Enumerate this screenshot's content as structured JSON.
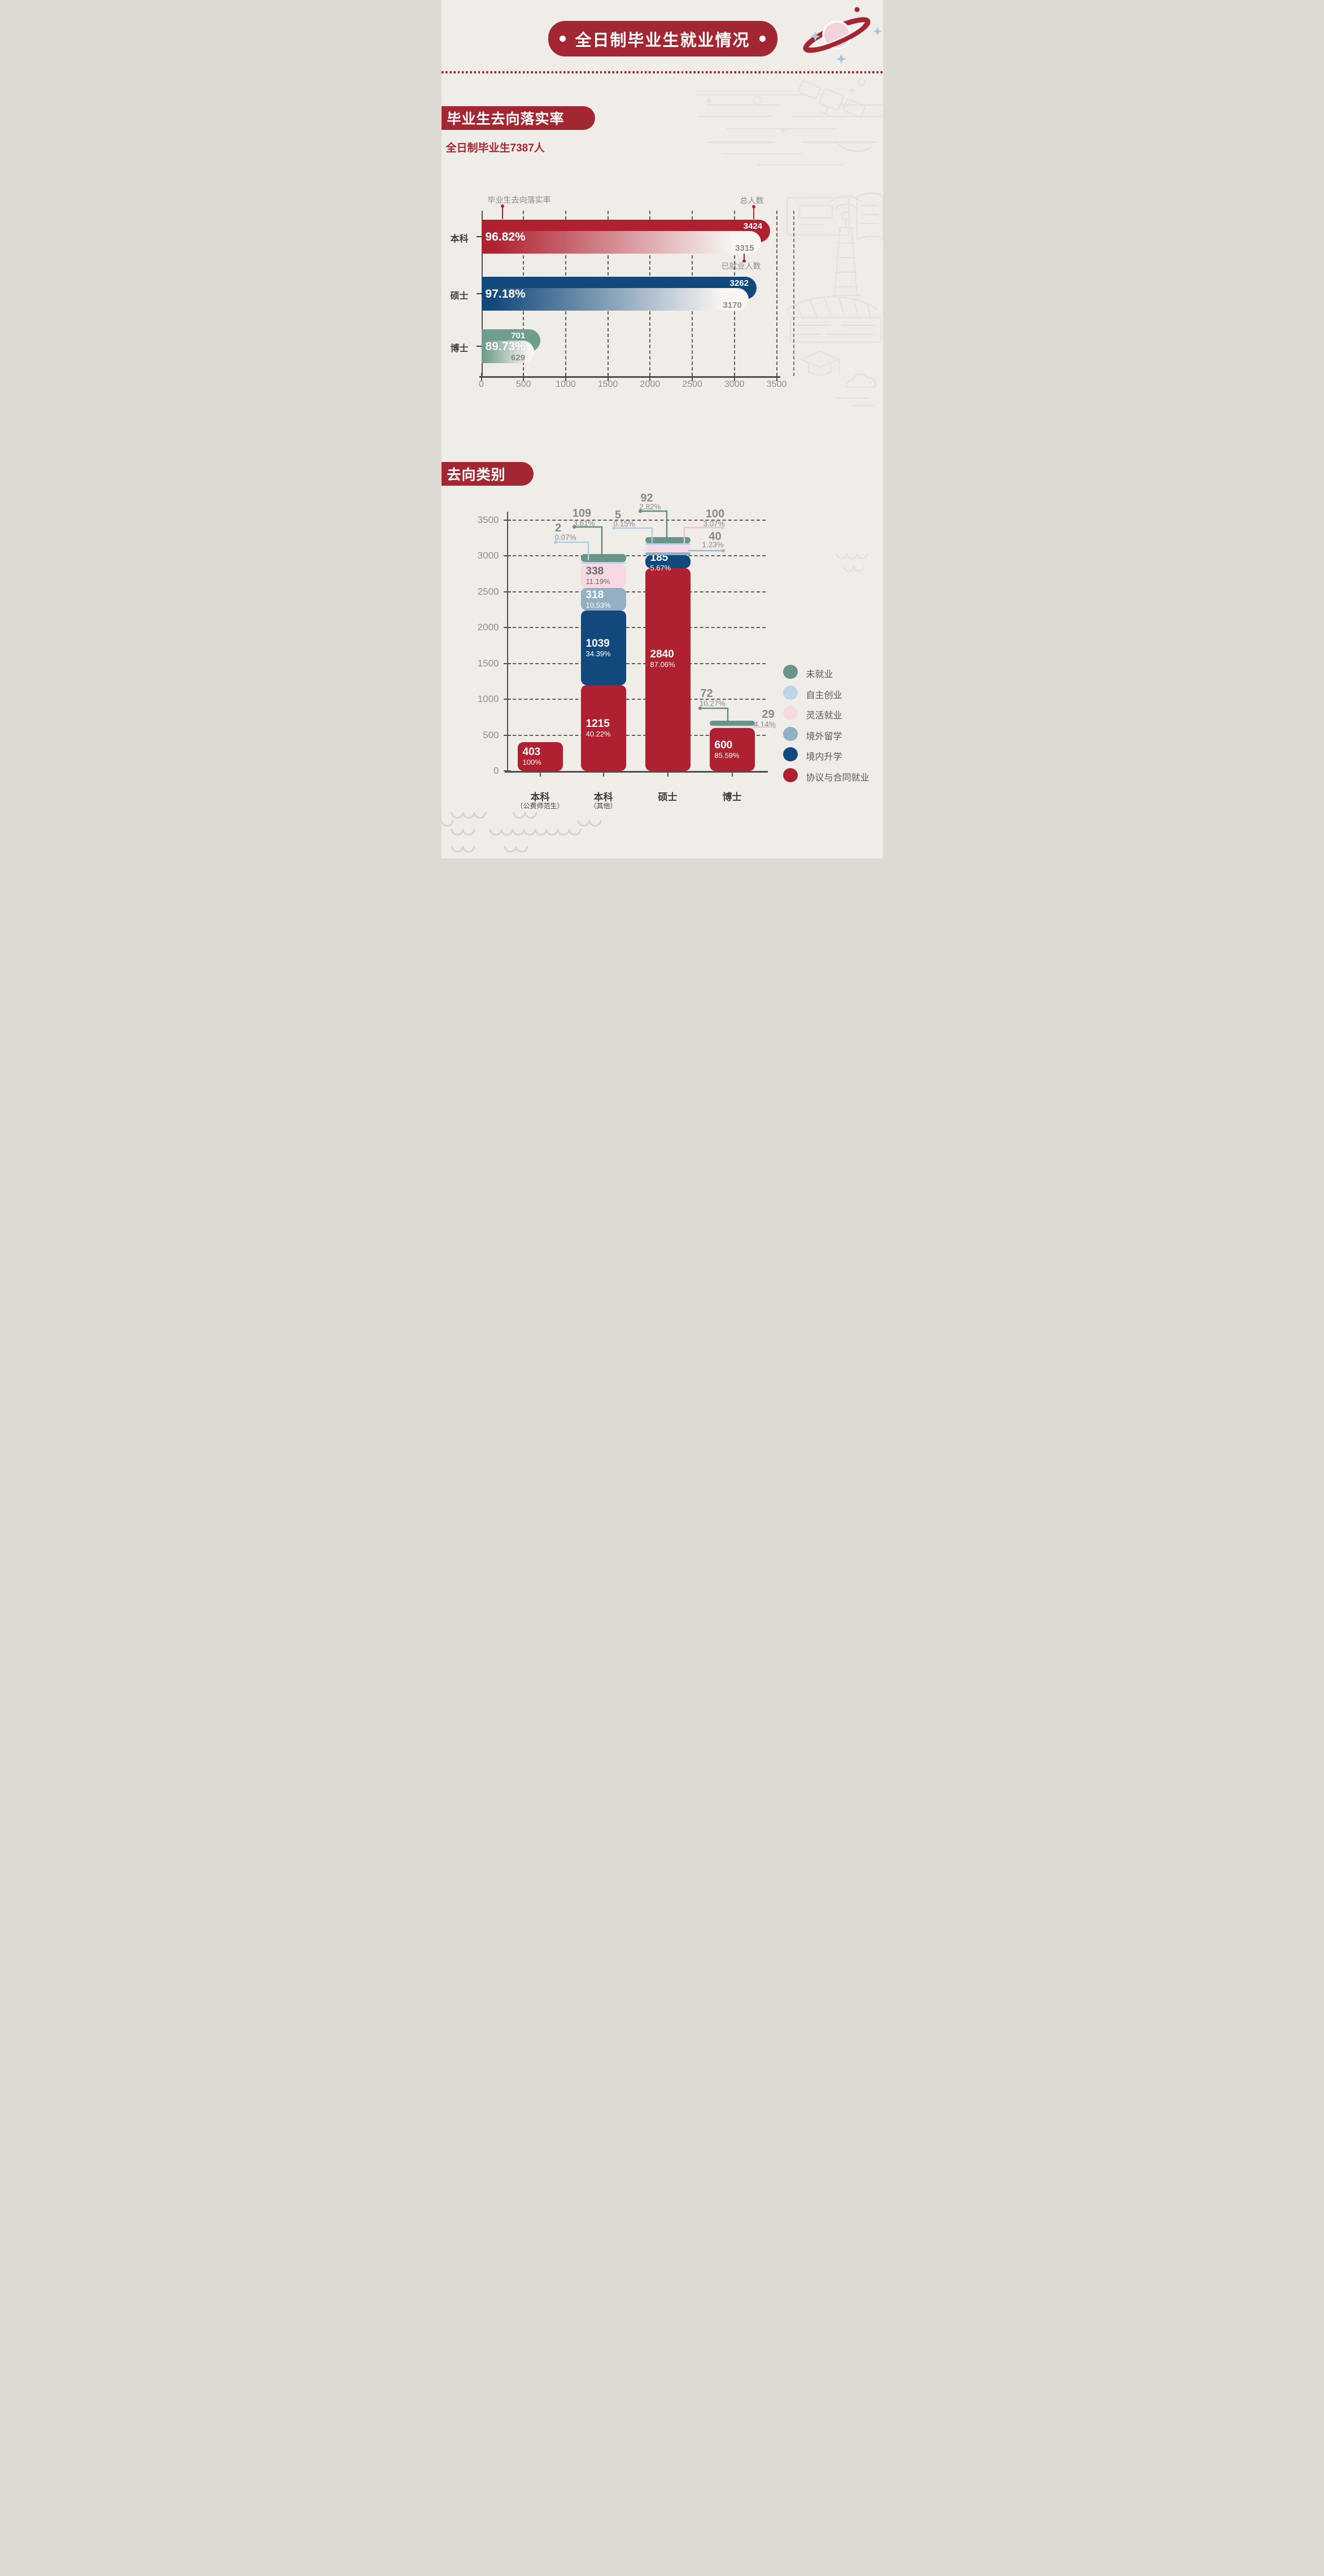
{
  "banner": {
    "title": "全日制毕业生就业情况"
  },
  "sections": [
    {
      "header": "毕业生去向落实率",
      "subtitle": "全日制毕业生7387人"
    },
    {
      "header": "去向类别"
    }
  ],
  "palette": {
    "banner_red": "#A32633",
    "red": "#AF2130",
    "blue": "#11497C",
    "teal": "#6A9487",
    "teal_light": "#6F9D8E",
    "lightblue": "#BDD5E9",
    "pink": "#F6D9E2",
    "grayblue": "#92AFC4",
    "gray_text": "#8A8A8A",
    "dark_text": "#3F3F3F",
    "axis": "#4F4F4F",
    "paper": "#F1EEE9"
  },
  "chart_data": [
    {
      "type": "bar",
      "orientation": "horizontal",
      "title": "毕业生去向落实率",
      "annotations": {
        "rate_label": "毕业生去向落实率",
        "total_label": "总人数",
        "employed_label": "已就业人数"
      },
      "categories": [
        "本科",
        "硕士",
        "博士"
      ],
      "series": [
        {
          "name": "总人数",
          "values": [
            3424,
            3262,
            701
          ]
        },
        {
          "name": "已就业人数",
          "values": [
            3315,
            3170,
            629
          ]
        },
        {
          "name": "毕业生去向落实率",
          "values": [
            "96.82%",
            "97.18%",
            "89.73%"
          ]
        }
      ],
      "bar_colors": [
        "#AF2130",
        "#11497C",
        "#6F9D8E"
      ],
      "xlim": [
        0,
        3500
      ],
      "x_ticks": [
        0,
        500,
        1000,
        1500,
        2000,
        2500,
        3000,
        3500
      ],
      "grid": "dashed-vertical"
    },
    {
      "type": "stacked-bar",
      "orientation": "vertical",
      "title": "去向类别",
      "categories": [
        "本科",
        "本科",
        "硕士",
        "博士"
      ],
      "category_subs": [
        "（公费师范生）",
        "（其他）",
        "",
        ""
      ],
      "series": [
        {
          "name": "协议与合同就业",
          "color_key": "red",
          "values": [
            403,
            1215,
            2840,
            600
          ],
          "pcts": [
            "100%",
            "40.22%",
            "87.06%",
            "85.59%"
          ]
        },
        {
          "name": "境内升学",
          "color_key": "blue",
          "values": [
            0,
            1039,
            185,
            0
          ],
          "pcts": [
            "",
            "34.39%",
            "5.67%",
            ""
          ]
        },
        {
          "name": "境外留学",
          "color_key": "grayblue",
          "values": [
            0,
            318,
            40,
            0
          ],
          "pcts": [
            "",
            "10.53%",
            "1.23%",
            ""
          ]
        },
        {
          "name": "灵活就业",
          "color_key": "pink",
          "values": [
            0,
            338,
            100,
            29
          ],
          "pcts": [
            "",
            "11.19%",
            "3.07%",
            "4.14%"
          ]
        },
        {
          "name": "自主创业",
          "color_key": "lightblue",
          "values": [
            0,
            2,
            5,
            0
          ],
          "pcts": [
            "",
            "0.07%",
            "0.15%",
            ""
          ]
        },
        {
          "name": "未就业",
          "color_key": "teal",
          "values": [
            0,
            109,
            92,
            72
          ],
          "pcts": [
            "",
            "3.61%",
            "2.82%",
            "10.27%"
          ]
        }
      ],
      "ylim": [
        0,
        3500
      ],
      "y_ticks": [
        0,
        500,
        1000,
        1500,
        2000,
        2500,
        3000,
        3500
      ],
      "grid": "dashed-horizontal",
      "legend": [
        {
          "label": "未就业",
          "color_key": "teal"
        },
        {
          "label": "自主创业",
          "color_key": "lightblue"
        },
        {
          "label": "灵活就业",
          "color_key": "pink"
        },
        {
          "label": "境外留学",
          "color_key": "grayblue"
        },
        {
          "label": "境内升学",
          "color_key": "blue"
        },
        {
          "label": "协议与合同就业",
          "color_key": "red"
        }
      ]
    }
  ]
}
